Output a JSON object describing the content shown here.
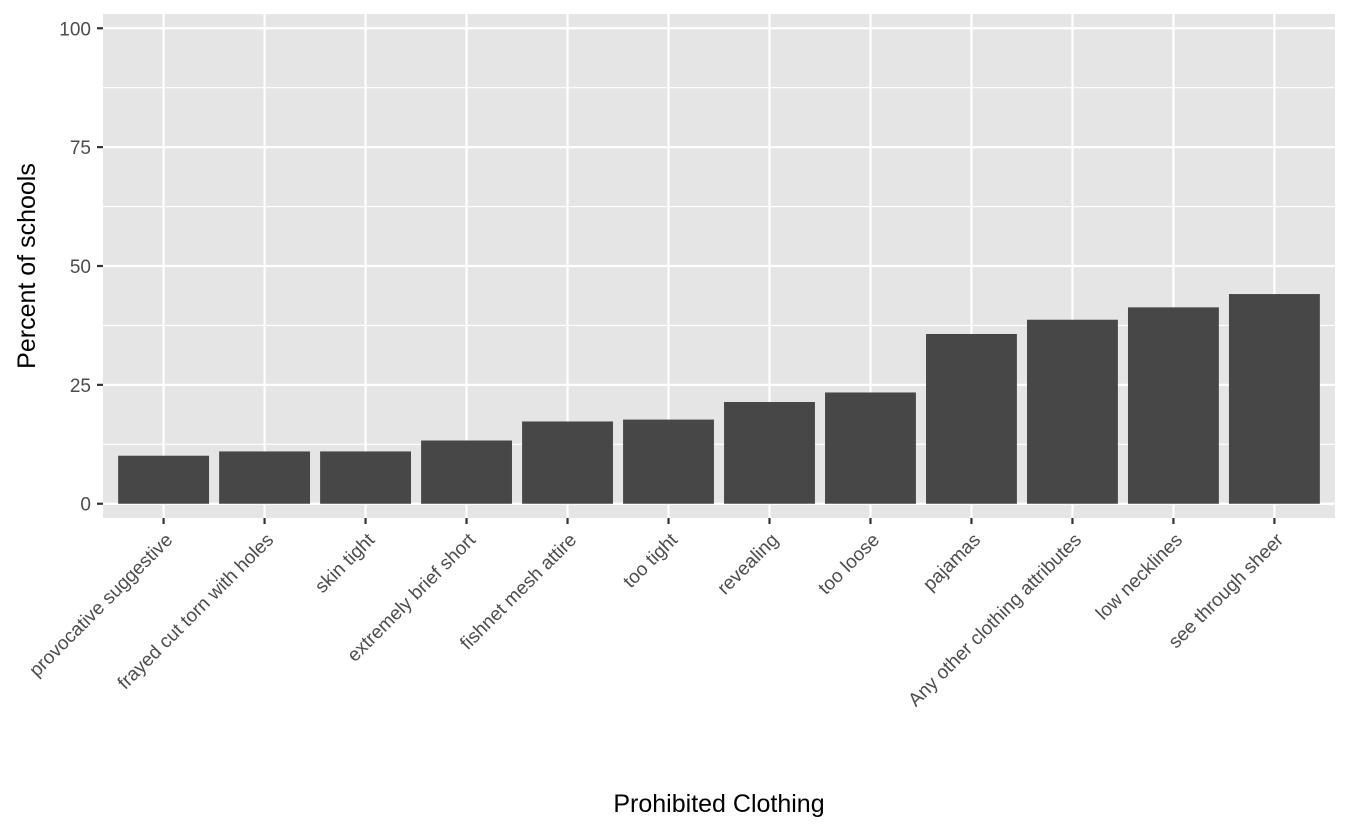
{
  "chart_data": {
    "type": "bar",
    "title": "",
    "xlabel": "Prohibited Clothing",
    "ylabel": "Percent of schools",
    "ylim": [
      -3,
      103
    ],
    "yticks": [
      0,
      25,
      50,
      75,
      100
    ],
    "grid": true,
    "legend": "none",
    "categories": [
      "provocative suggestive",
      "frayed cut torn with holes",
      "skin tight",
      "extremely brief short",
      "fishnet mesh attire",
      "too tight",
      "revealing",
      "too loose",
      "pajamas",
      "Any other clothing attributes",
      "low necklines",
      "see through sheer"
    ],
    "values": [
      10.1,
      11.0,
      11.0,
      13.3,
      17.3,
      17.7,
      21.4,
      23.4,
      35.7,
      38.7,
      41.3,
      44.1
    ],
    "colors": {
      "panel": "#e5e5e5",
      "grid": "#ffffff",
      "bar": "#474747",
      "tick_text": "#4d4d4d",
      "tick_mark": "#333333",
      "title_text": "#000000"
    }
  }
}
